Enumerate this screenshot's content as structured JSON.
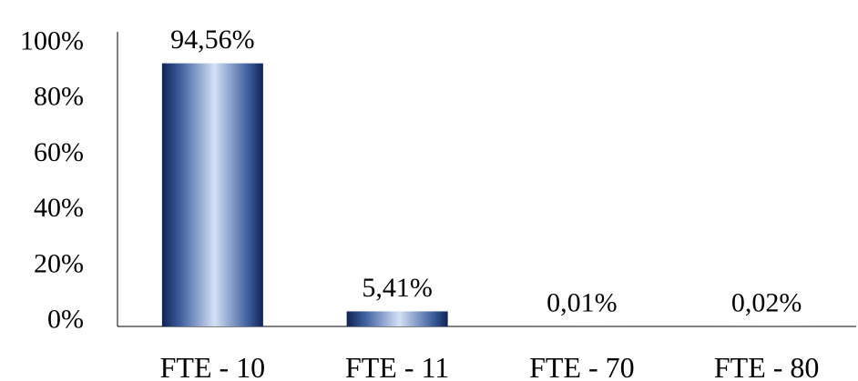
{
  "chart_data": {
    "type": "bar",
    "categories": [
      "FTE - 10",
      "FTE - 11",
      "FTE - 70",
      "FTE - 80"
    ],
    "values": [
      94.56,
      5.41,
      0.01,
      0.02
    ],
    "data_labels": [
      "94,56%",
      "5,41%",
      "0,01%",
      "0,02%"
    ],
    "y_ticks": [
      0,
      20,
      40,
      60,
      80,
      100
    ],
    "y_tick_labels": [
      "0%",
      "20%",
      "40%",
      "60%",
      "80%",
      "100%"
    ],
    "ylim": [
      0,
      100
    ],
    "title": "",
    "xlabel": "",
    "ylabel": "",
    "grid": false,
    "legend": "none",
    "bar_colors": {
      "dark": "#0f2456",
      "mid": "#3e5f9e",
      "light": "#d4e1f5"
    }
  }
}
